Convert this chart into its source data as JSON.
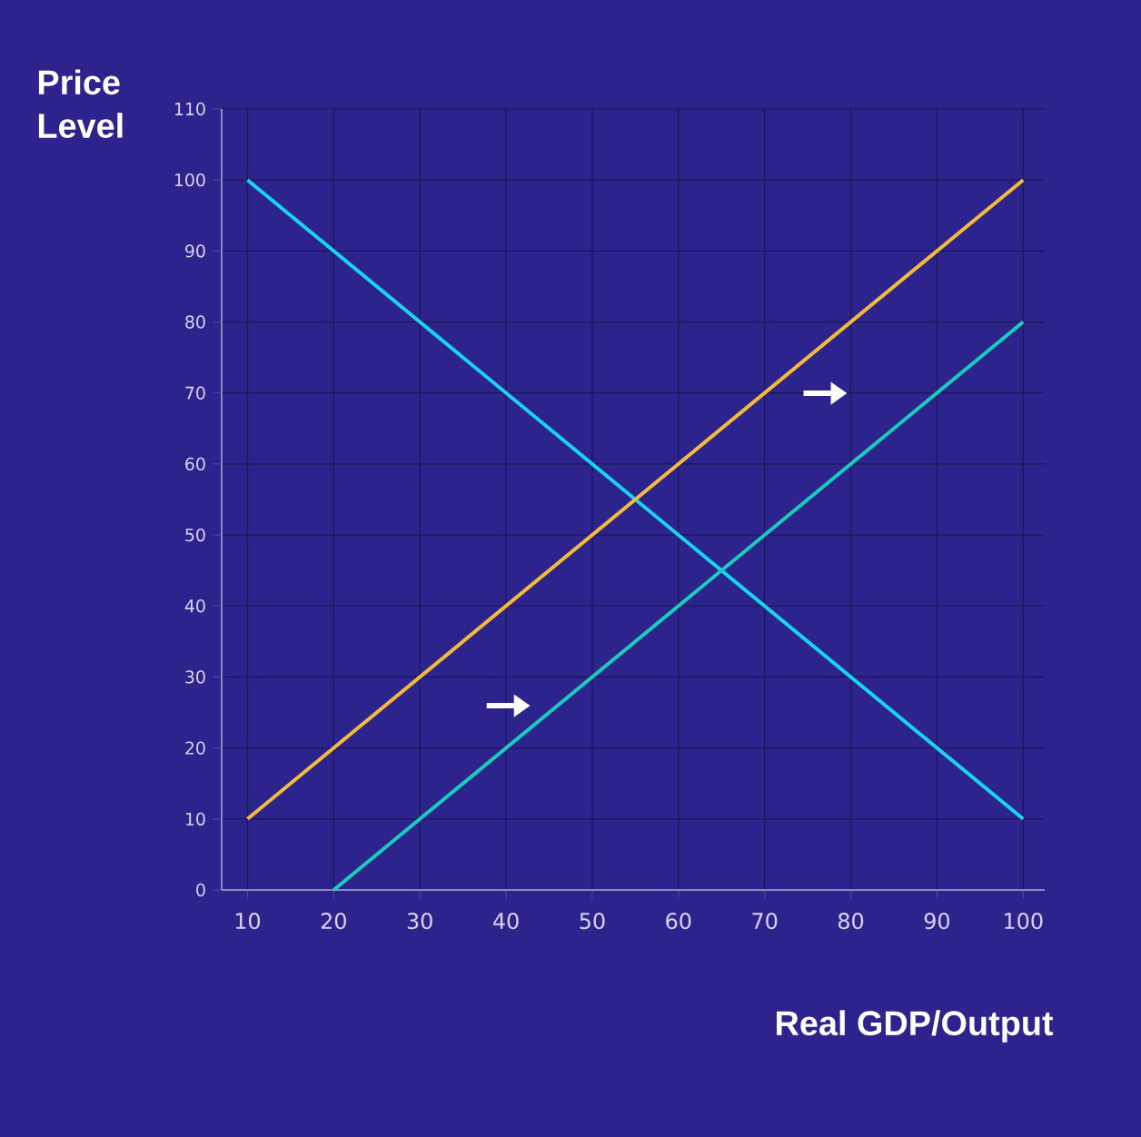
{
  "chart_data": {
    "type": "line",
    "xlabel": "Real GDP/Output",
    "ylabel": "Price Level",
    "series": [
      {
        "color": "#1ad3ec",
        "x": [
          10,
          100
        ],
        "values": [
          100,
          10
        ]
      },
      {
        "color": "#f2bb3c",
        "x": [
          10,
          100
        ],
        "values": [
          10,
          100
        ]
      },
      {
        "color": "#19ccbc",
        "x": [
          20,
          100
        ],
        "values": [
          0,
          80
        ]
      }
    ],
    "xlim": [
      7,
      102.5
    ],
    "ylim": [
      0,
      110
    ],
    "xticks": [
      10,
      20,
      30,
      40,
      50,
      60,
      70,
      80,
      90,
      100
    ],
    "yticks": [
      0,
      10,
      20,
      30,
      40,
      50,
      60,
      70,
      80,
      90,
      100,
      110
    ],
    "grid": true
  }
}
